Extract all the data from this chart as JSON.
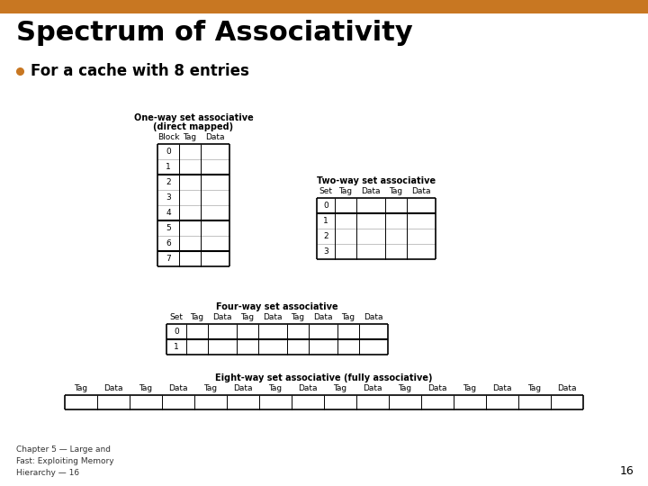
{
  "title": "Spectrum of Associativity",
  "bullet": "For a cache with 8 entries",
  "header_bar_color": "#c87722",
  "bg_color": "#ffffff",
  "title_color": "#000000",
  "bullet_color": "#c87722",
  "footer_text": "Chapter 5 — Large and\nFast: Exploiting Memory\nHierarchy — 16",
  "page_number": "16",
  "one_way_title_line1": "One-way set associative",
  "one_way_title_line2": "(direct mapped)",
  "one_way_col_headers": [
    "Block",
    "Tag",
    "Data"
  ],
  "one_way_rows": 8,
  "one_way_thick_after": [
    1,
    4,
    6
  ],
  "two_way_title": "Two-way set associative",
  "two_way_col_headers": [
    "Set",
    "Tag",
    "Data",
    "Tag",
    "Data"
  ],
  "two_way_rows": 4,
  "two_way_thick_after": [
    0
  ],
  "four_way_title": "Four-way set associative",
  "four_way_col_headers": [
    "Set",
    "Tag",
    "Data",
    "Tag",
    "Data",
    "Tag",
    "Data",
    "Tag",
    "Data"
  ],
  "four_way_rows": 2,
  "four_way_thick_after": [
    0
  ],
  "eight_way_title": "Eight-way set associative (fully associative)",
  "eight_way_col_headers": [
    "Tag",
    "Data",
    "Tag",
    "Data",
    "Tag",
    "Data",
    "Tag",
    "Data",
    "Tag",
    "Data",
    "Tag",
    "Data",
    "Tag",
    "Data",
    "Tag",
    "Data"
  ],
  "eight_way_rows": 1
}
